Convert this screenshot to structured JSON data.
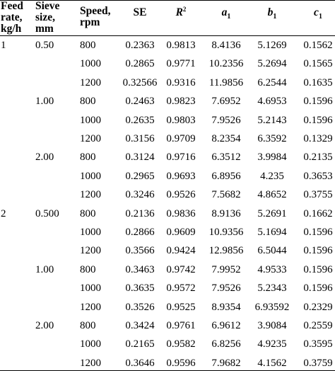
{
  "headers": {
    "feed_rate": [
      "Feed",
      "rate,",
      "kg/h"
    ],
    "sieve": [
      "Sieve",
      "size,",
      "mm"
    ],
    "speed": [
      "Speed,",
      "rpm"
    ],
    "se": "SE",
    "r2": {
      "base": "R",
      "sup": "2"
    },
    "a1": {
      "base": "a",
      "sub": "1"
    },
    "b1": {
      "base": "b",
      "sub": "1"
    },
    "c1": {
      "base": "c",
      "sub": "1"
    }
  },
  "rows": [
    {
      "feed": "1",
      "sieve": "0.50",
      "speed": "800",
      "se": "0.2363",
      "r2": "0.9813",
      "a1": "8.4136",
      "b1": "5.1269",
      "c1": "0.1562"
    },
    {
      "feed": "",
      "sieve": "",
      "speed": "1000",
      "se": "0.2865",
      "r2": "0.9771",
      "a1": "10.2356",
      "b1": "5.2694",
      "c1": "0.1565"
    },
    {
      "feed": "",
      "sieve": "",
      "speed": "1200",
      "se": "0.32566",
      "r2": "0.9316",
      "a1": "11.9856",
      "b1": "6.2544",
      "c1": "0.1635"
    },
    {
      "feed": "",
      "sieve": "1.00",
      "speed": "800",
      "se": "0.2463",
      "r2": "0.9823",
      "a1": "7.6952",
      "b1": "4.6953",
      "c1": "0.1596"
    },
    {
      "feed": "",
      "sieve": "",
      "speed": "1000",
      "se": "0.2635",
      "r2": "0.9803",
      "a1": "7.9526",
      "b1": "5.2143",
      "c1": "0.1596"
    },
    {
      "feed": "",
      "sieve": "",
      "speed": "1200",
      "se": "0.3156",
      "r2": "0.9709",
      "a1": "8.2354",
      "b1": "6.3592",
      "c1": "0.1329"
    },
    {
      "feed": "",
      "sieve": "2.00",
      "speed": "800",
      "se": "0.3124",
      "r2": "0.9716",
      "a1": "6.3512",
      "b1": "3.9984",
      "c1": "0.2135"
    },
    {
      "feed": "",
      "sieve": "",
      "speed": "1000",
      "se": "0.2965",
      "r2": "0.9693",
      "a1": "6.8956",
      "b1": "4.235",
      "c1": "0.3653"
    },
    {
      "feed": "",
      "sieve": "",
      "speed": "1200",
      "se": "0.3246",
      "r2": "0.9526",
      "a1": "7.5682",
      "b1": "4.8652",
      "c1": "0.3755"
    },
    {
      "feed": "2",
      "sieve": "0.500",
      "speed": "800",
      "se": "0.2136",
      "r2": "0.9836",
      "a1": "8.9136",
      "b1": "5.2691",
      "c1": "0.1662"
    },
    {
      "feed": "",
      "sieve": "",
      "speed": "1000",
      "se": "0.2866",
      "r2": "0.9609",
      "a1": "10.9356",
      "b1": "5.1694",
      "c1": "0.1596"
    },
    {
      "feed": "",
      "sieve": "",
      "speed": "1200",
      "se": "0.3566",
      "r2": "0.9424",
      "a1": "12.9856",
      "b1": "6.5044",
      "c1": "0.1596"
    },
    {
      "feed": "",
      "sieve": "1.00",
      "speed": "800",
      "se": "0.3463",
      "r2": "0.9742",
      "a1": "7.9952",
      "b1": "4.9533",
      "c1": "0.1596"
    },
    {
      "feed": "",
      "sieve": "",
      "speed": "1000",
      "se": "0.3635",
      "r2": "0.9572",
      "a1": "7.9526",
      "b1": "5.2343",
      "c1": "0.1596"
    },
    {
      "feed": "",
      "sieve": "",
      "speed": "1200",
      "se": "0.3526",
      "r2": "0.9525",
      "a1": "8.9354",
      "b1": "6.93592",
      "c1": "0.2329"
    },
    {
      "feed": "",
      "sieve": "2.00",
      "speed": "800",
      "se": "0.3424",
      "r2": "0.9761",
      "a1": "6.9612",
      "b1": "3.9084",
      "c1": "0.2559"
    },
    {
      "feed": "",
      "sieve": "",
      "speed": "1000",
      "se": "0.2165",
      "r2": "0.9582",
      "a1": "6.8256",
      "b1": "4.9235",
      "c1": "0.3595"
    },
    {
      "feed": "",
      "sieve": "",
      "speed": "1200",
      "se": "0.3646",
      "r2": "0.9596",
      "a1": "7.9682",
      "b1": "4.1562",
      "c1": "0.3759"
    }
  ]
}
